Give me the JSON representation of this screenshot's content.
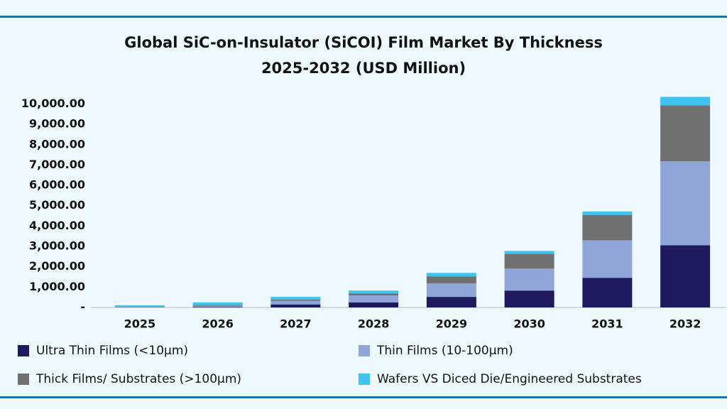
{
  "chart_data": {
    "type": "stacked_bar",
    "title": "Global SiC-on-Insulator (SiCOI) Film Market By Thickness",
    "subtitle": "2025-2032 (USD Million)",
    "categories": [
      "2025",
      "2026",
      "2027",
      "2028",
      "2029",
      "2030",
      "2031",
      "2032"
    ],
    "series": [
      {
        "name": "Ultra Thin Films (<10µm)",
        "color": "#1f1a5e",
        "values": [
          10,
          30,
          150,
          250,
          520,
          830,
          1460,
          3060
        ]
      },
      {
        "name": "Thin Films (10-100µm)",
        "color": "#8fa5d8",
        "values": [
          20,
          50,
          180,
          340,
          660,
          1080,
          1840,
          4130
        ]
      },
      {
        "name": "Thick Films/ Substrates (>100µm)",
        "color": "#707070",
        "values": [
          15,
          40,
          60,
          100,
          350,
          730,
          1250,
          2740
        ]
      },
      {
        "name": "Wafers VS Diced Die/Engineered Substrates",
        "color": "#3ec3f3",
        "values": [
          60,
          130,
          130,
          140,
          170,
          140,
          170,
          420
        ]
      }
    ],
    "ylim": [
      0,
      10400
    ],
    "yticks": [
      {
        "value": 0,
        "label": "-"
      },
      {
        "value": 1000,
        "label": "1,000.00"
      },
      {
        "value": 2000,
        "label": "2,000.00"
      },
      {
        "value": 3000,
        "label": "3,000.00"
      },
      {
        "value": 4000,
        "label": "4,000.00"
      },
      {
        "value": 5000,
        "label": "5,000.00"
      },
      {
        "value": 6000,
        "label": "6,000.00"
      },
      {
        "value": 7000,
        "label": "7,000.00"
      },
      {
        "value": 8000,
        "label": "8,000.00"
      },
      {
        "value": 9000,
        "label": "9,000.00"
      },
      {
        "value": 10000,
        "label": "10,000.00"
      }
    ],
    "grid": false
  }
}
